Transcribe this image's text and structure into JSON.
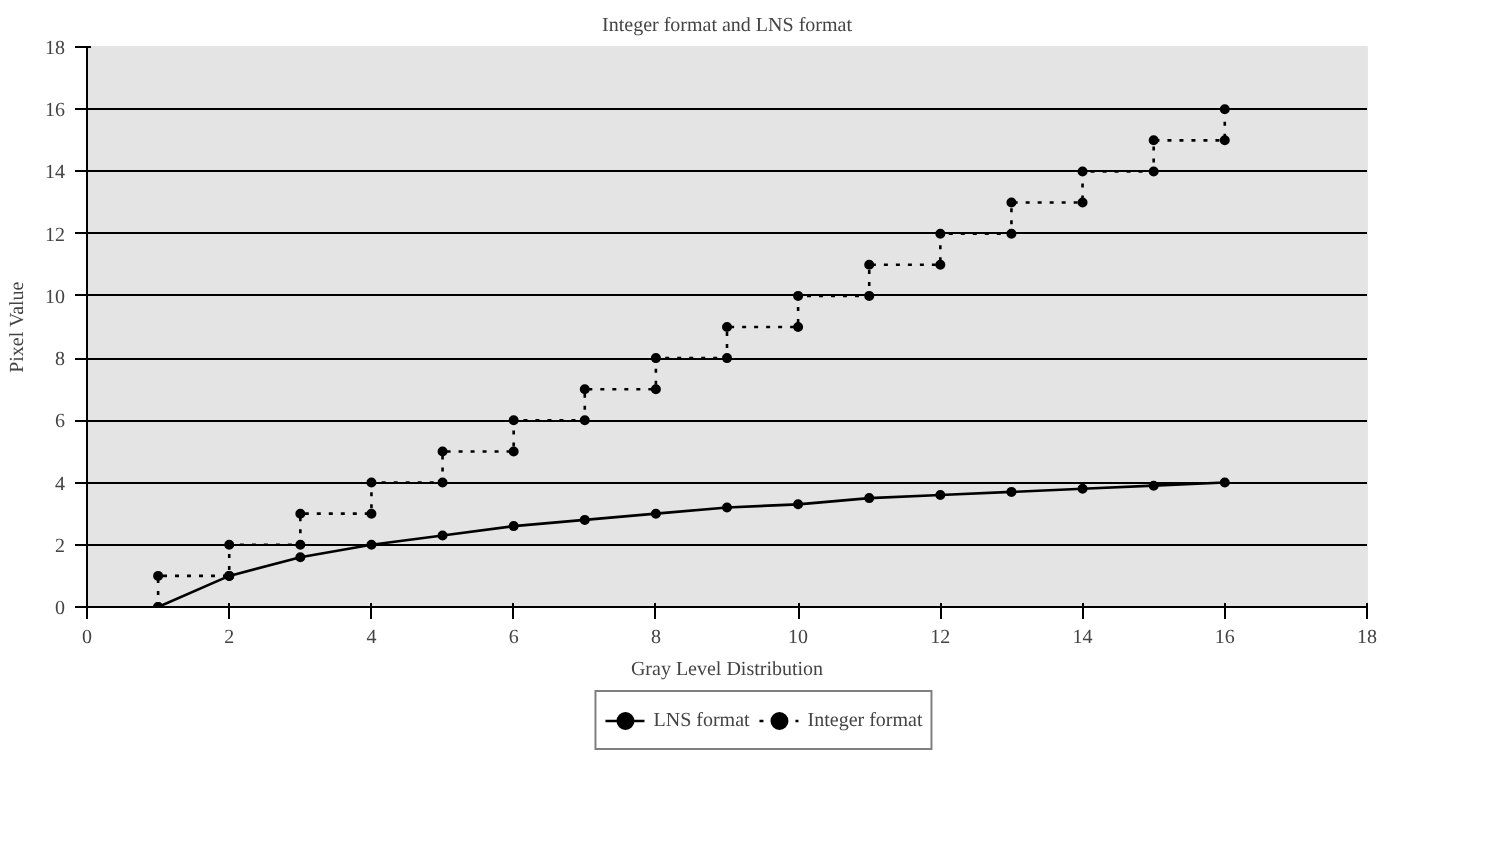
{
  "chart_data": {
    "type": "line",
    "title": "Integer format and LNS format",
    "xlabel": "Gray Level Distribution",
    "ylabel": "Pixel Value",
    "xlim": [
      0,
      18
    ],
    "xticks": [
      0,
      2,
      4,
      6,
      8,
      10,
      12,
      14,
      16,
      18
    ],
    "ylim": [
      0,
      18
    ],
    "yticks": [
      0,
      2,
      4,
      6,
      8,
      10,
      12,
      14,
      16,
      18
    ],
    "grid": "y",
    "legend": "bottom",
    "marker": "circle",
    "series": [
      {
        "name": "LNS format",
        "color": "#000000",
        "line_style": "solid",
        "x": [
          1,
          2,
          3,
          4,
          5,
          6,
          7,
          8,
          9,
          10,
          11,
          12,
          13,
          14,
          15,
          16
        ],
        "values": [
          0,
          1,
          1.6,
          2,
          2.3,
          2.6,
          2.8,
          3,
          3.2,
          3.3,
          3.5,
          3.6,
          3.7,
          3.8,
          3.9,
          4
        ]
      },
      {
        "name": "Integer format",
        "color": "#000000",
        "line_style": "dotted",
        "x": [
          1,
          1,
          2,
          2,
          3,
          3,
          4,
          4,
          5,
          5,
          6,
          6,
          7,
          7,
          8,
          8,
          9,
          9,
          10,
          10,
          11,
          11,
          12,
          12,
          13,
          13,
          14,
          14,
          15,
          15,
          16,
          16
        ],
        "values": [
          0,
          1,
          1,
          2,
          2,
          3,
          3,
          4,
          4,
          5,
          5,
          6,
          6,
          7,
          7,
          8,
          8,
          9,
          9,
          10,
          10,
          11,
          11,
          12,
          12,
          13,
          13,
          14,
          14,
          15,
          15,
          16
        ]
      }
    ]
  }
}
